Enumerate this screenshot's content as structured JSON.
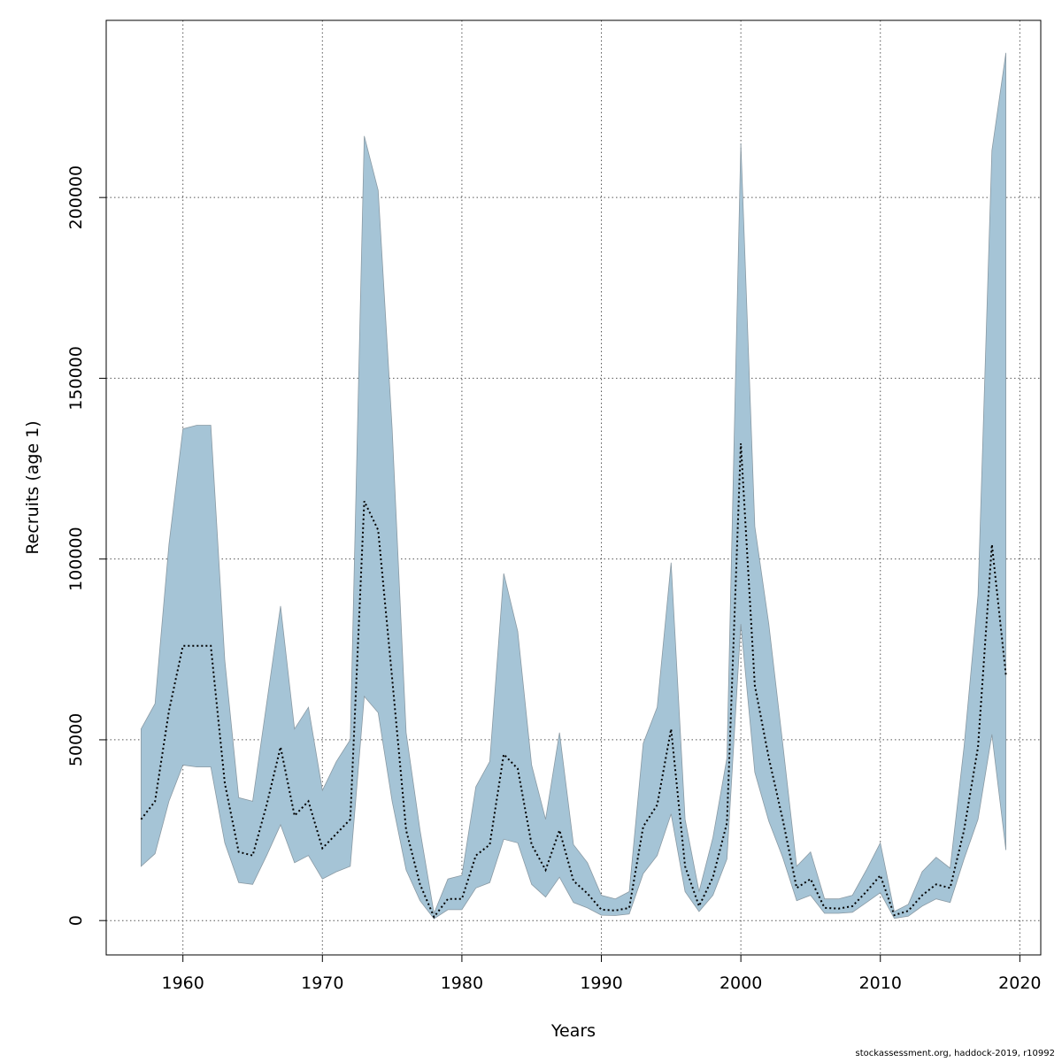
{
  "chart_data": {
    "type": "area",
    "title": "",
    "xlabel": "Years",
    "ylabel": "Recruits (age 1)",
    "xlim": [
      1954.5,
      2021.5
    ],
    "ylim": [
      -9500,
      249000
    ],
    "xticks": [
      1960,
      1970,
      1980,
      1990,
      2000,
      2010,
      2020
    ],
    "yticks": [
      0,
      50000,
      100000,
      150000,
      200000
    ],
    "grid": true,
    "band_color": "#a5c4d6",
    "band_edge_color": "#8a9aa4",
    "line_color": "#000000",
    "x": [
      1957,
      1958,
      1959,
      1960,
      1961,
      1962,
      1963,
      1964,
      1965,
      1966,
      1967,
      1968,
      1969,
      1970,
      1971,
      1972,
      1973,
      1974,
      1975,
      1976,
      1977,
      1978,
      1979,
      1980,
      1981,
      1982,
      1983,
      1984,
      1985,
      1986,
      1987,
      1988,
      1989,
      1990,
      1991,
      1992,
      1993,
      1994,
      1995,
      1996,
      1997,
      1998,
      1999,
      2000,
      2001,
      2002,
      2003,
      2004,
      2005,
      2006,
      2007,
      2008,
      2009,
      2010,
      2011,
      2012,
      2013,
      2014,
      2015,
      2016,
      2017,
      2018,
      2019
    ],
    "series": [
      {
        "role": "estimate",
        "values": [
          28000,
          33000,
          58000,
          76000,
          76000,
          76000,
          38000,
          19000,
          18000,
          32000,
          48000,
          29000,
          33000,
          20000,
          24000,
          28000,
          116000,
          108000,
          67000,
          25000,
          10000,
          1000,
          6000,
          6000,
          18000,
          21000,
          46000,
          42000,
          21000,
          14000,
          25000,
          11000,
          7500,
          3000,
          2800,
          3500,
          26000,
          32000,
          53000,
          15000,
          4000,
          12000,
          27000,
          132000,
          65000,
          45000,
          28000,
          9000,
          11500,
          3500,
          3300,
          4000,
          8000,
          12500,
          1500,
          2700,
          7000,
          10000,
          9000,
          25000,
          48000,
          104000,
          68000
        ]
      },
      {
        "role": "upper",
        "values": [
          53000,
          60000,
          104000,
          136000,
          137000,
          137000,
          72000,
          34000,
          33000,
          60000,
          87000,
          53000,
          59000,
          36000,
          44000,
          50000,
          217000,
          202000,
          136000,
          52000,
          25000,
          2000,
          11500,
          12500,
          37000,
          44000,
          96000,
          80000,
          43000,
          28000,
          52000,
          21000,
          16000,
          7000,
          6000,
          8000,
          49000,
          59000,
          99000,
          28000,
          8000,
          23000,
          45000,
          215000,
          109000,
          82000,
          49000,
          15000,
          19000,
          6000,
          6000,
          7000,
          14000,
          21500,
          2500,
          4500,
          13500,
          17500,
          14500,
          48000,
          90000,
          213000,
          240000
        ]
      },
      {
        "role": "lower",
        "values": [
          15000,
          18500,
          33000,
          43000,
          42500,
          42500,
          21500,
          10500,
          10000,
          18000,
          26500,
          16000,
          18000,
          11500,
          13500,
          15000,
          62000,
          57500,
          33000,
          14000,
          5500,
          500,
          3000,
          3000,
          9000,
          10500,
          22500,
          21500,
          10000,
          6500,
          12000,
          5000,
          3500,
          1500,
          1400,
          1800,
          13000,
          18000,
          29500,
          8000,
          2500,
          7000,
          17000,
          82000,
          41000,
          27500,
          17500,
          5500,
          7000,
          2000,
          2000,
          2300,
          5000,
          7700,
          600,
          1200,
          4000,
          6000,
          5000,
          17000,
          28000,
          51500,
          19500
        ]
      }
    ]
  },
  "credit": "stockassessment.org, haddock-2019, r10992"
}
